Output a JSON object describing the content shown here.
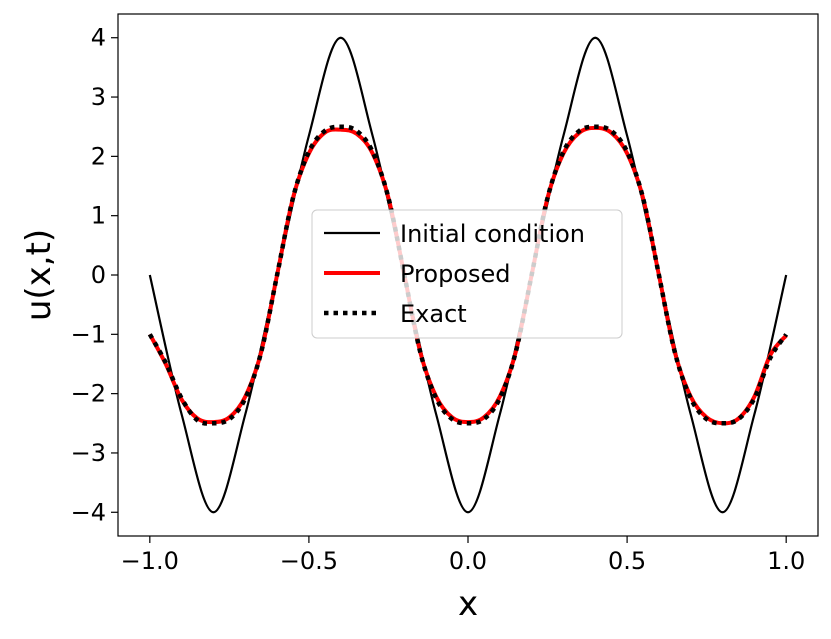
{
  "chart_data": {
    "type": "line",
    "title": "",
    "xlabel": "x",
    "ylabel": "u(x,t)",
    "xlim": [
      -1.1,
      1.1
    ],
    "ylim": [
      -4.4,
      4.4
    ],
    "xticks": [
      -1.0,
      -0.5,
      0.0,
      0.5,
      1.0
    ],
    "xtick_labels": [
      "−1.0",
      "−0.5",
      "0.0",
      "0.5",
      "1.0"
    ],
    "yticks": [
      4,
      3,
      2,
      1,
      0,
      -1,
      -2,
      -3,
      -4
    ],
    "ytick_labels": [
      "4",
      "3",
      "2",
      "1",
      "0",
      "−1",
      "−2",
      "−3",
      "−4"
    ],
    "grid": false,
    "legend_position": "center",
    "series": [
      {
        "name": "Initial condition",
        "color": "#000000",
        "style": "solid",
        "x": [
          -1.0,
          -0.9,
          -0.8,
          -0.7,
          -0.6,
          -0.5,
          -0.4,
          -0.3,
          -0.2,
          -0.1,
          0.0,
          0.1,
          0.2,
          0.3,
          0.4,
          0.5,
          0.6,
          0.7,
          0.8,
          0.9,
          1.0
        ],
        "y": [
          0.0,
          -2.35,
          -4.0,
          -2.35,
          0.0,
          2.35,
          4.0,
          2.35,
          0.0,
          -2.35,
          -4.0,
          -2.35,
          0.0,
          2.35,
          4.0,
          2.35,
          0.0,
          -2.35,
          -4.0,
          -2.35,
          0.0
        ]
      },
      {
        "name": "Proposed",
        "color": "#ff0000",
        "style": "solid",
        "x": [
          -1.0,
          -0.95,
          -0.9,
          -0.85,
          -0.8,
          -0.75,
          -0.7,
          -0.65,
          -0.6,
          -0.55,
          -0.5,
          -0.45,
          -0.4,
          -0.35,
          -0.3,
          -0.25,
          -0.2,
          -0.15,
          -0.1,
          -0.05,
          0.0,
          0.05,
          0.1,
          0.15,
          0.2,
          0.25,
          0.3,
          0.35,
          0.4,
          0.45,
          0.5,
          0.55,
          0.6,
          0.65,
          0.7,
          0.75,
          0.8,
          0.85,
          0.9,
          0.95,
          1.0
        ],
        "y": [
          -1.0,
          -1.5,
          -2.1,
          -2.42,
          -2.48,
          -2.4,
          -2.05,
          -1.3,
          0.0,
          1.3,
          2.05,
          2.4,
          2.45,
          2.38,
          2.05,
          1.3,
          0.0,
          -1.3,
          -2.05,
          -2.4,
          -2.48,
          -2.4,
          -2.05,
          -1.3,
          0.0,
          1.3,
          2.05,
          2.4,
          2.48,
          2.4,
          2.05,
          1.3,
          0.0,
          -1.3,
          -2.05,
          -2.4,
          -2.5,
          -2.42,
          -2.05,
          -1.35,
          -1.02
        ]
      },
      {
        "name": "Exact",
        "color": "#000000",
        "style": "dotted",
        "x": [
          -1.0,
          -0.95,
          -0.9,
          -0.85,
          -0.8,
          -0.75,
          -0.7,
          -0.65,
          -0.6,
          -0.55,
          -0.5,
          -0.45,
          -0.4,
          -0.35,
          -0.3,
          -0.25,
          -0.2,
          -0.15,
          -0.1,
          -0.05,
          0.0,
          0.05,
          0.1,
          0.15,
          0.2,
          0.25,
          0.3,
          0.35,
          0.4,
          0.45,
          0.5,
          0.55,
          0.6,
          0.65,
          0.7,
          0.75,
          0.8,
          0.85,
          0.9,
          0.95,
          1.0
        ],
        "y": [
          -1.0,
          -1.48,
          -2.08,
          -2.45,
          -2.5,
          -2.43,
          -2.08,
          -1.3,
          0.0,
          1.3,
          2.08,
          2.43,
          2.5,
          2.43,
          2.08,
          1.3,
          0.0,
          -1.3,
          -2.08,
          -2.43,
          -2.5,
          -2.43,
          -2.08,
          -1.3,
          0.0,
          1.3,
          2.08,
          2.43,
          2.5,
          2.43,
          2.08,
          1.3,
          0.0,
          -1.3,
          -2.08,
          -2.43,
          -2.5,
          -2.43,
          -2.08,
          -1.4,
          -1.0
        ]
      }
    ]
  }
}
